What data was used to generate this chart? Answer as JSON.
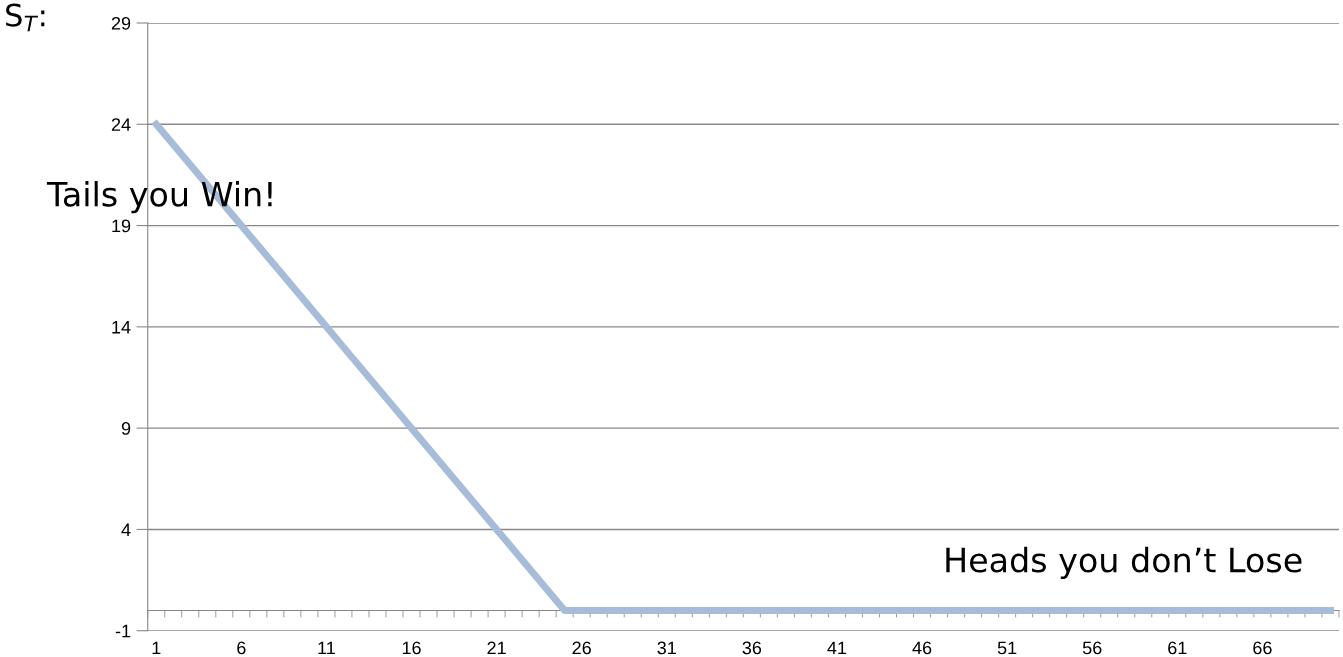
{
  "chart_data": {
    "type": "line",
    "categories": [
      "1",
      null,
      null,
      null,
      null,
      "6",
      null,
      null,
      null,
      null,
      "11",
      null,
      null,
      null,
      null,
      "16",
      null,
      null,
      null,
      null,
      "21",
      null,
      null,
      null,
      null,
      "26",
      null,
      null,
      null,
      null,
      "31",
      null,
      null,
      null,
      null,
      "36",
      null,
      null,
      null,
      null,
      "41",
      null,
      null,
      null,
      null,
      "46",
      null,
      null,
      null,
      null,
      "51",
      null,
      null,
      null,
      null,
      "56",
      null,
      null,
      null,
      null,
      "61",
      null,
      null,
      null,
      null,
      "66",
      null,
      null,
      null,
      null
    ],
    "series": [
      {
        "color": "#a7bcd9",
        "values": [
          24,
          23,
          22,
          21,
          20,
          19,
          18,
          17,
          16,
          15,
          14,
          13,
          12,
          11,
          10,
          9,
          8,
          7,
          6,
          5,
          4,
          3,
          2,
          1,
          0,
          0,
          0,
          0,
          0,
          0,
          0,
          0,
          0,
          0,
          0,
          0,
          0,
          0,
          0,
          0,
          0,
          0,
          0,
          0,
          0,
          0,
          0,
          0,
          0,
          0,
          0,
          0,
          0,
          0,
          0,
          0,
          0,
          0,
          0,
          0,
          0,
          0,
          0,
          0,
          0,
          0,
          0,
          0,
          0,
          0
        ]
      }
    ],
    "ylim": [
      -1,
      29
    ],
    "yticks": [
      -1,
      4,
      9,
      14,
      19,
      24,
      29
    ],
    "grid": "y",
    "marker": "none",
    "line_style": "solid",
    "annotations": [
      "S$_{T}$:",
      "Tails you Win!",
      "Heads you don’t Lose"
    ]
  }
}
